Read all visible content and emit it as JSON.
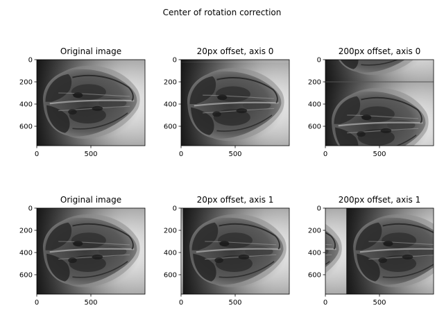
{
  "chart_data": {
    "type": "image-grid",
    "title": "Center of rotation correction",
    "image_shape": [
      775,
      1000
    ],
    "panels": [
      {
        "title": "Original image",
        "shift_axis": null,
        "shift_px": 0,
        "xlim": [
          0,
          1000
        ],
        "ylim": [
          775,
          0
        ],
        "xticks": [
          0,
          500
        ],
        "yticks": [
          0,
          200,
          400,
          600
        ]
      },
      {
        "title": "20px offset, axis 0",
        "shift_axis": 0,
        "shift_px": 20,
        "xlim": [
          0,
          1000
        ],
        "ylim": [
          775,
          0
        ],
        "xticks": [
          0,
          500
        ],
        "yticks": [
          0,
          200,
          400,
          600
        ]
      },
      {
        "title": "200px offset, axis 0",
        "shift_axis": 0,
        "shift_px": 200,
        "xlim": [
          0,
          1000
        ],
        "ylim": [
          775,
          0
        ],
        "xticks": [
          0,
          500
        ],
        "yticks": [
          0,
          200,
          400,
          600
        ]
      },
      {
        "title": "Original image",
        "shift_axis": null,
        "shift_px": 0,
        "xlim": [
          0,
          1000
        ],
        "ylim": [
          775,
          0
        ],
        "xticks": [
          0,
          500
        ],
        "yticks": [
          0,
          200,
          400,
          600
        ]
      },
      {
        "title": "20px offset, axis 1",
        "shift_axis": 1,
        "shift_px": 20,
        "xlim": [
          0,
          1000
        ],
        "ylim": [
          775,
          0
        ],
        "xticks": [
          0,
          500
        ],
        "yticks": [
          0,
          200,
          400,
          600
        ]
      },
      {
        "title": "200px offset, axis 1",
        "shift_axis": 1,
        "shift_px": 200,
        "xlim": [
          0,
          1000
        ],
        "ylim": [
          775,
          0
        ],
        "xticks": [
          0,
          500
        ],
        "yticks": [
          0,
          200,
          400,
          600
        ]
      }
    ]
  }
}
